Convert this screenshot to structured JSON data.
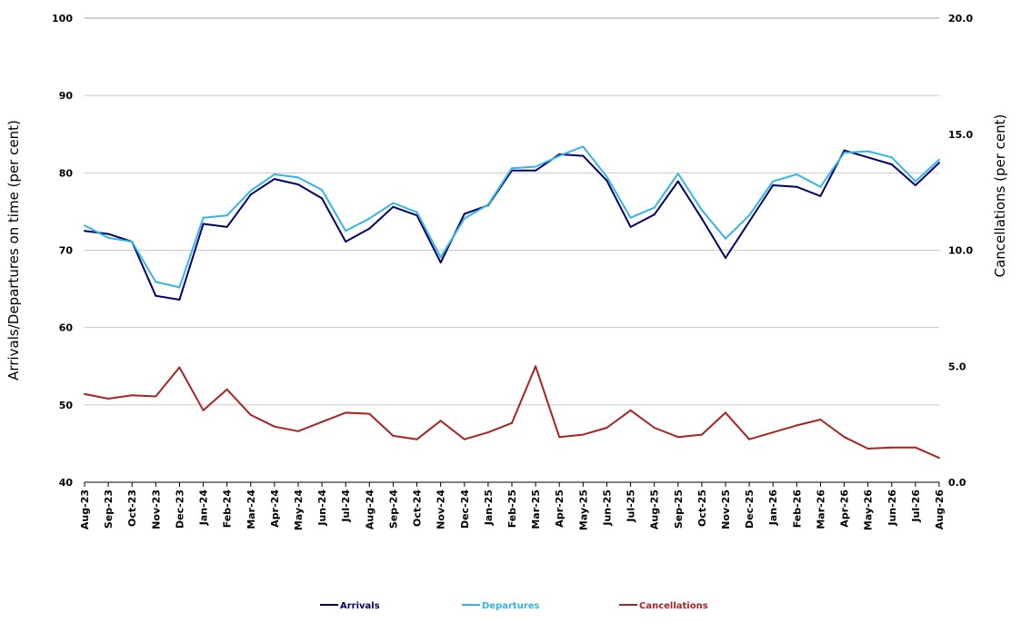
{
  "chart_data": {
    "type": "line",
    "x": [
      "Aug-23",
      "Sep-23",
      "Oct-23",
      "Nov-23",
      "Dec-23",
      "Jan-24",
      "Feb-24",
      "Mar-24",
      "Apr-24",
      "May-24",
      "Jun-24",
      "Jul-24",
      "Aug-24",
      "Sep-24",
      "Oct-24",
      "Nov-24",
      "Dec-24",
      "Jan-25",
      "Feb-25",
      "Mar-25",
      "Apr-25",
      "May-25",
      "Jun-25",
      "Jul-25",
      "Aug-25",
      "Sep-25",
      "Oct-25",
      "Nov-25",
      "Dec-25",
      "Jan-26",
      "Feb-26",
      "Mar-26",
      "Apr-26",
      "May-26",
      "Jun-26",
      "Jul-26",
      "Aug-26"
    ],
    "ylabel": "Arrivals/Departures on time (per cent)",
    "ylabel_right": "Cancellations (per cent)",
    "ylim": [
      40,
      100
    ],
    "ylim_right": [
      0,
      20
    ],
    "yticks": [
      "40",
      "50",
      "60",
      "70",
      "80",
      "90",
      "100"
    ],
    "yticks_right": [
      "0.0",
      "5.0",
      "10.0",
      "15.0",
      "20.0"
    ],
    "grid": true,
    "legend_position": "bottom",
    "series": [
      {
        "name": "Arrivals",
        "axis": "left",
        "color": "#000066",
        "values": [
          72.5,
          72.1,
          71.1,
          64.1,
          63.6,
          73.4,
          73.0,
          77.2,
          79.2,
          78.5,
          76.7,
          71.1,
          72.8,
          75.6,
          74.5,
          68.4,
          74.7,
          75.8,
          80.3,
          80.3,
          82.4,
          82.2,
          79.0,
          73.0,
          74.6,
          78.9,
          74.1,
          69.0,
          73.7,
          78.4,
          78.2,
          77.0,
          82.9,
          82.0,
          81.1,
          78.4,
          81.3
        ]
      },
      {
        "name": "Departures",
        "axis": "left",
        "color": "#33b5e5",
        "values": [
          73.2,
          71.6,
          71.1,
          65.9,
          65.2,
          74.2,
          74.5,
          77.7,
          79.8,
          79.4,
          77.8,
          72.5,
          74.1,
          76.1,
          74.9,
          69.1,
          74.1,
          75.9,
          80.6,
          80.8,
          82.2,
          83.4,
          79.5,
          74.2,
          75.5,
          79.9,
          75.2,
          71.5,
          74.5,
          78.9,
          79.8,
          78.2,
          82.6,
          82.8,
          82.0,
          78.9,
          81.7
        ]
      },
      {
        "name": "Cancellations",
        "axis": "right",
        "color": "#aa2222",
        "values": [
          3.8,
          3.6,
          3.75,
          3.7,
          4.95,
          3.1,
          4.0,
          2.9,
          2.4,
          2.2,
          2.6,
          3.0,
          2.95,
          2.0,
          1.85,
          2.65,
          1.85,
          2.15,
          2.55,
          5.0,
          1.95,
          2.05,
          2.35,
          3.1,
          2.35,
          1.95,
          2.05,
          3.0,
          1.85,
          2.15,
          2.45,
          2.7,
          1.95,
          1.45,
          1.5,
          1.5,
          1.05
        ]
      }
    ]
  }
}
